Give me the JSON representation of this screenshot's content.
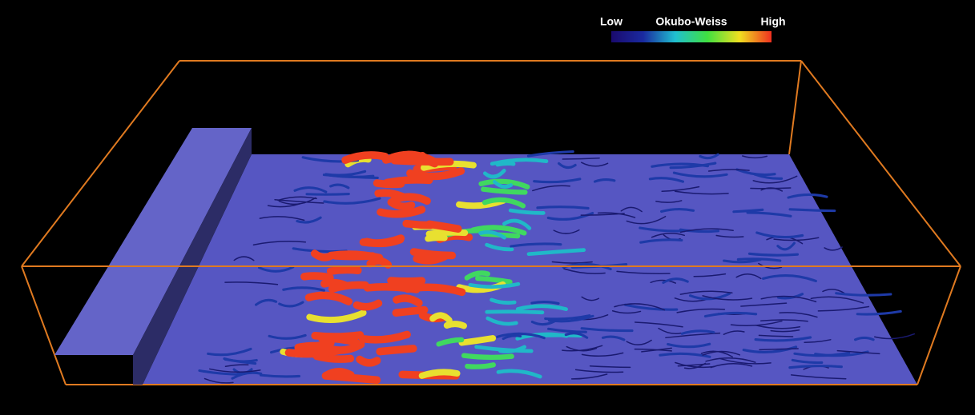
{
  "legend": {
    "low": "Low",
    "title": "Okubo-Weiss",
    "high": "High"
  }
}
